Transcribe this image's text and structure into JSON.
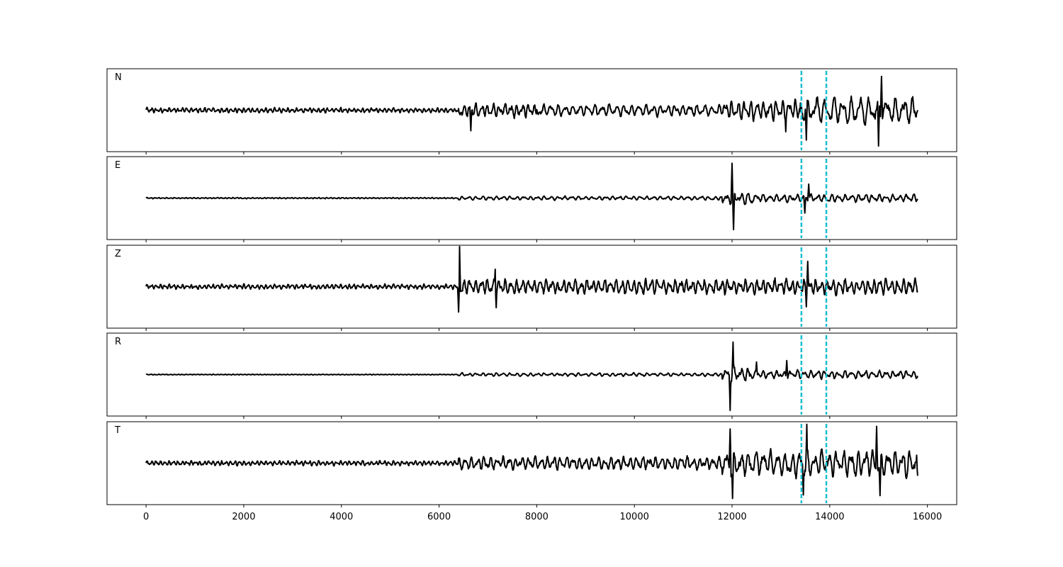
{
  "chart_data": {
    "type": "line",
    "xlim": [
      -800,
      16600
    ],
    "x_ticks": [
      0,
      2000,
      4000,
      6000,
      8000,
      10000,
      12000,
      14000,
      16000
    ],
    "x_tick_labels": [
      "0",
      "2000",
      "4000",
      "6000",
      "8000",
      "10000",
      "12000",
      "14000",
      "16000"
    ],
    "grid": false,
    "x_start": 0,
    "x_end": 15800,
    "markers": {
      "style": "dashed",
      "color": "#17becf",
      "x": [
        13420,
        13930
      ]
    },
    "line_color": "#000000",
    "panels": [
      {
        "label": "N",
        "ylim": [
          -1.25,
          1.25
        ],
        "segments": [
          {
            "x0": 0,
            "x1": 6400,
            "amp": 0.12,
            "period": 90
          },
          {
            "x0": 6400,
            "x1": 8000,
            "amp": 0.32,
            "period": 120
          },
          {
            "x0": 8000,
            "x1": 11800,
            "amp": 0.24,
            "period": 150
          },
          {
            "x0": 11800,
            "x1": 13400,
            "amp": 0.45,
            "period": 130
          },
          {
            "x0": 13400,
            "x1": 15800,
            "amp": 0.55,
            "period": 180
          }
        ],
        "spikes": [
          {
            "x": 6650,
            "y": -0.62
          },
          {
            "x": 13100,
            "y": -0.65
          },
          {
            "x": 13530,
            "y": 0.85
          },
          {
            "x": 13520,
            "y": -0.9
          },
          {
            "x": 15000,
            "y": -1.08
          },
          {
            "x": 15060,
            "y": 1.02
          }
        ]
      },
      {
        "label": "E",
        "ylim": [
          -1.25,
          1.25
        ],
        "segments": [
          {
            "x0": 0,
            "x1": 6400,
            "amp": 0.03,
            "period": 80
          },
          {
            "x0": 6400,
            "x1": 11800,
            "amp": 0.08,
            "period": 140
          },
          {
            "x0": 11800,
            "x1": 12400,
            "amp": 0.3,
            "period": 150
          },
          {
            "x0": 12400,
            "x1": 15800,
            "amp": 0.16,
            "period": 140
          }
        ],
        "spikes": [
          {
            "x": 12000,
            "y": 1.05
          },
          {
            "x": 12030,
            "y": -0.95
          },
          {
            "x": 13570,
            "y": 0.42
          },
          {
            "x": 13490,
            "y": -0.45
          }
        ]
      },
      {
        "label": "Z",
        "ylim": [
          -0.95,
          0.95
        ],
        "segments": [
          {
            "x0": 0,
            "x1": 6400,
            "amp": 0.09,
            "period": 90
          },
          {
            "x0": 6400,
            "x1": 15800,
            "amp": 0.26,
            "period": 120
          }
        ],
        "spikes": [
          {
            "x": 6420,
            "y": 0.92
          },
          {
            "x": 6400,
            "y": -0.58
          },
          {
            "x": 7150,
            "y": 0.4
          },
          {
            "x": 7170,
            "y": -0.48
          },
          {
            "x": 13550,
            "y": 0.58
          },
          {
            "x": 13520,
            "y": -0.46
          }
        ]
      },
      {
        "label": "R",
        "ylim": [
          -1.25,
          1.25
        ],
        "segments": [
          {
            "x0": 0,
            "x1": 6400,
            "amp": 0.02,
            "period": 80
          },
          {
            "x0": 6400,
            "x1": 11800,
            "amp": 0.07,
            "period": 140
          },
          {
            "x0": 11800,
            "x1": 12400,
            "amp": 0.3,
            "period": 150
          },
          {
            "x0": 12400,
            "x1": 15800,
            "amp": 0.17,
            "period": 140
          }
        ],
        "spikes": [
          {
            "x": 12020,
            "y": 0.98
          },
          {
            "x": 11960,
            "y": -1.08
          },
          {
            "x": 13120,
            "y": 0.42
          },
          {
            "x": 12500,
            "y": 0.38
          }
        ]
      },
      {
        "label": "T",
        "ylim": [
          -1.15,
          1.15
        ],
        "segments": [
          {
            "x0": 0,
            "x1": 6400,
            "amp": 0.11,
            "period": 90
          },
          {
            "x0": 6400,
            "x1": 11800,
            "amp": 0.26,
            "period": 130
          },
          {
            "x0": 11800,
            "x1": 15800,
            "amp": 0.5,
            "period": 150
          }
        ],
        "spikes": [
          {
            "x": 11960,
            "y": 0.95
          },
          {
            "x": 12010,
            "y": -0.98
          },
          {
            "x": 13530,
            "y": 1.08
          },
          {
            "x": 13460,
            "y": -0.88
          },
          {
            "x": 14960,
            "y": 1.02
          },
          {
            "x": 15030,
            "y": -0.9
          },
          {
            "x": 15800,
            "y": -0.35
          }
        ]
      }
    ]
  }
}
